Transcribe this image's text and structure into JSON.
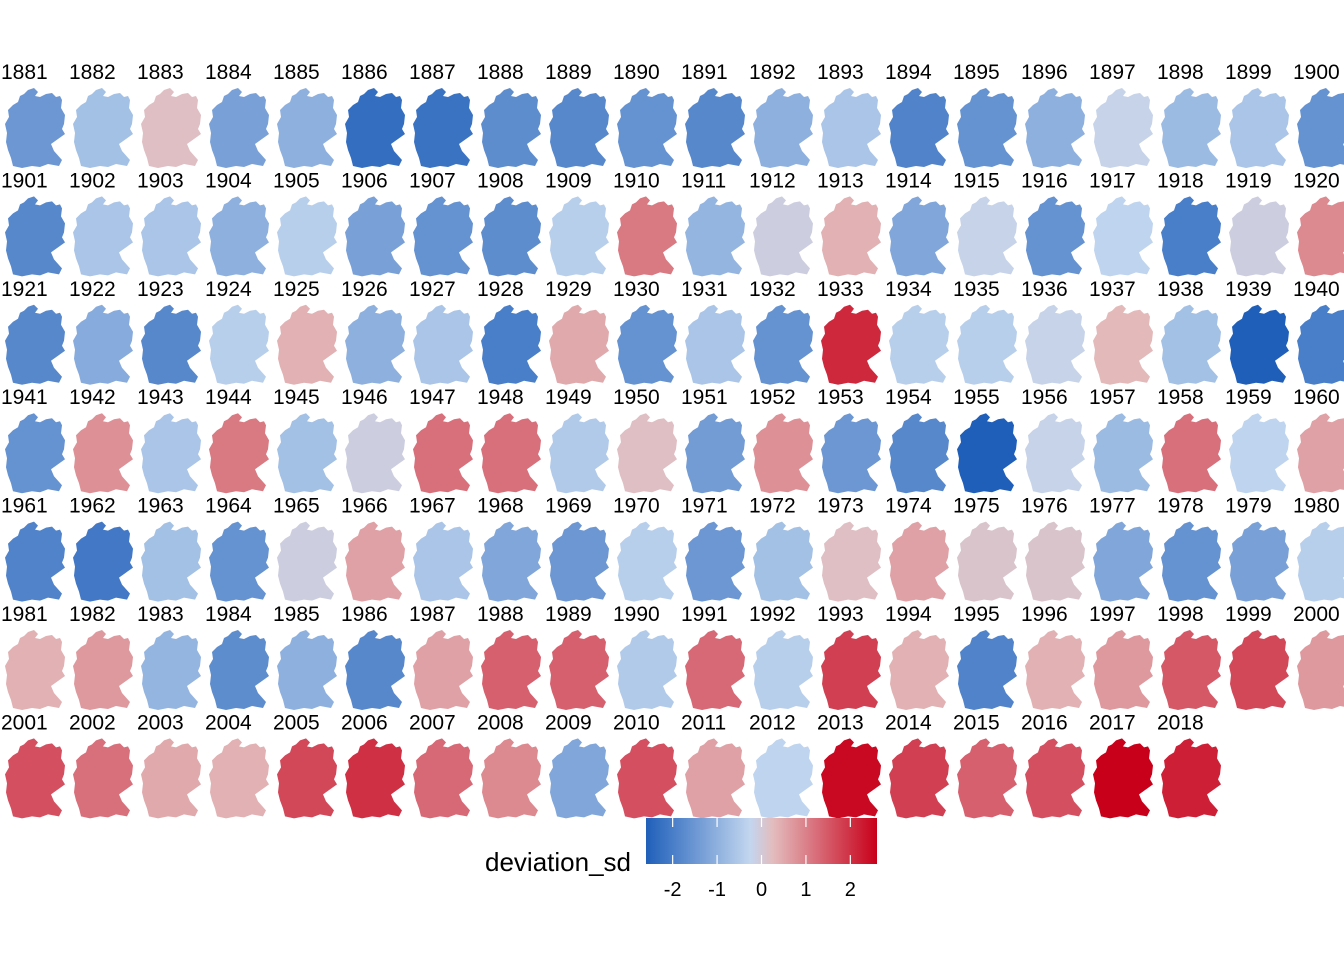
{
  "chart_data": {
    "type": "heatmap",
    "title": "",
    "layout": "small multiples of Germany maps, 20 per row",
    "facets": [
      {
        "year": "1881",
        "value": -1.5
      },
      {
        "year": "1882",
        "value": -0.7
      },
      {
        "year": "1883",
        "value": 0.2
      },
      {
        "year": "1884",
        "value": -1.3
      },
      {
        "year": "1885",
        "value": -1.0
      },
      {
        "year": "1886",
        "value": -2.3
      },
      {
        "year": "1887",
        "value": -2.2
      },
      {
        "year": "1888",
        "value": -1.7
      },
      {
        "year": "1889",
        "value": -1.8
      },
      {
        "year": "1890",
        "value": -1.6
      },
      {
        "year": "1891",
        "value": -1.8
      },
      {
        "year": "1892",
        "value": -1.0
      },
      {
        "year": "1893",
        "value": -0.6
      },
      {
        "year": "1894",
        "value": -1.9
      },
      {
        "year": "1895",
        "value": -1.6
      },
      {
        "year": "1896",
        "value": -1.0
      },
      {
        "year": "1897",
        "value": -0.2
      },
      {
        "year": "1898",
        "value": -0.8
      },
      {
        "year": "1899",
        "value": -0.6
      },
      {
        "year": "1900",
        "value": -1.6
      },
      {
        "year": "1901",
        "value": -1.8
      },
      {
        "year": "1902",
        "value": -0.6
      },
      {
        "year": "1903",
        "value": -0.6
      },
      {
        "year": "1904",
        "value": -1.0
      },
      {
        "year": "1905",
        "value": -0.4
      },
      {
        "year": "1906",
        "value": -1.3
      },
      {
        "year": "1907",
        "value": -1.6
      },
      {
        "year": "1908",
        "value": -1.7
      },
      {
        "year": "1909",
        "value": -0.4
      },
      {
        "year": "1910",
        "value": 1.1
      },
      {
        "year": "1911",
        "value": -0.9
      },
      {
        "year": "1912",
        "value": -0.1
      },
      {
        "year": "1913",
        "value": 0.4
      },
      {
        "year": "1914",
        "value": -1.2
      },
      {
        "year": "1915",
        "value": -0.2
      },
      {
        "year": "1916",
        "value": -1.6
      },
      {
        "year": "1917",
        "value": -0.3
      },
      {
        "year": "1918",
        "value": -2.0
      },
      {
        "year": "1919",
        "value": -0.1
      },
      {
        "year": "1920",
        "value": 0.9
      },
      {
        "year": "1921",
        "value": -1.8
      },
      {
        "year": "1922",
        "value": -1.1
      },
      {
        "year": "1923",
        "value": -1.8
      },
      {
        "year": "1924",
        "value": -0.4
      },
      {
        "year": "1925",
        "value": 0.4
      },
      {
        "year": "1926",
        "value": -1.0
      },
      {
        "year": "1927",
        "value": -0.6
      },
      {
        "year": "1928",
        "value": -2.0
      },
      {
        "year": "1929",
        "value": 0.5
      },
      {
        "year": "1930",
        "value": -1.6
      },
      {
        "year": "1931",
        "value": -0.6
      },
      {
        "year": "1932",
        "value": -1.6
      },
      {
        "year": "1933",
        "value": 2.1
      },
      {
        "year": "1934",
        "value": -0.4
      },
      {
        "year": "1935",
        "value": -0.4
      },
      {
        "year": "1936",
        "value": -0.2
      },
      {
        "year": "1937",
        "value": 0.3
      },
      {
        "year": "1938",
        "value": -0.7
      },
      {
        "year": "1939",
        "value": -2.6
      },
      {
        "year": "1940",
        "value": -2.0
      },
      {
        "year": "1941",
        "value": -1.6
      },
      {
        "year": "1942",
        "value": 0.8
      },
      {
        "year": "1943",
        "value": -0.6
      },
      {
        "year": "1944",
        "value": 1.1
      },
      {
        "year": "1945",
        "value": -0.7
      },
      {
        "year": "1946",
        "value": -0.1
      },
      {
        "year": "1947",
        "value": 1.2
      },
      {
        "year": "1948",
        "value": 1.2
      },
      {
        "year": "1949",
        "value": -0.5
      },
      {
        "year": "1950",
        "value": 0.2
      },
      {
        "year": "1951",
        "value": -1.4
      },
      {
        "year": "1952",
        "value": 0.8
      },
      {
        "year": "1953",
        "value": -1.5
      },
      {
        "year": "1954",
        "value": -1.8
      },
      {
        "year": "1955",
        "value": -2.6
      },
      {
        "year": "1956",
        "value": -0.2
      },
      {
        "year": "1957",
        "value": -0.8
      },
      {
        "year": "1958",
        "value": 1.2
      },
      {
        "year": "1959",
        "value": -0.3
      },
      {
        "year": "1960",
        "value": 0.6
      },
      {
        "year": "1961",
        "value": -1.9
      },
      {
        "year": "1962",
        "value": -2.1
      },
      {
        "year": "1963",
        "value": -0.7
      },
      {
        "year": "1964",
        "value": -1.6
      },
      {
        "year": "1965",
        "value": -0.1
      },
      {
        "year": "1966",
        "value": 0.6
      },
      {
        "year": "1967",
        "value": -0.6
      },
      {
        "year": "1968",
        "value": -1.2
      },
      {
        "year": "1969",
        "value": -1.5
      },
      {
        "year": "1970",
        "value": -0.4
      },
      {
        "year": "1971",
        "value": -1.5
      },
      {
        "year": "1972",
        "value": -0.7
      },
      {
        "year": "1973",
        "value": 0.2
      },
      {
        "year": "1974",
        "value": 0.6
      },
      {
        "year": "1975",
        "value": 0.1
      },
      {
        "year": "1976",
        "value": 0.1
      },
      {
        "year": "1977",
        "value": -1.2
      },
      {
        "year": "1978",
        "value": -1.6
      },
      {
        "year": "1979",
        "value": -1.3
      },
      {
        "year": "1980",
        "value": -0.4
      },
      {
        "year": "1981",
        "value": 0.4
      },
      {
        "year": "1982",
        "value": 0.7
      },
      {
        "year": "1983",
        "value": -0.9
      },
      {
        "year": "1984",
        "value": -1.7
      },
      {
        "year": "1985",
        "value": -1.0
      },
      {
        "year": "1986",
        "value": -1.8
      },
      {
        "year": "1987",
        "value": 0.6
      },
      {
        "year": "1988",
        "value": 1.4
      },
      {
        "year": "1989",
        "value": 1.4
      },
      {
        "year": "1990",
        "value": -0.5
      },
      {
        "year": "1991",
        "value": 1.3
      },
      {
        "year": "1992",
        "value": -0.4
      },
      {
        "year": "1993",
        "value": 1.8
      },
      {
        "year": "1994",
        "value": 0.4
      },
      {
        "year": "1995",
        "value": -1.9
      },
      {
        "year": "1996",
        "value": 0.4
      },
      {
        "year": "1997",
        "value": 0.7
      },
      {
        "year": "1998",
        "value": 1.5
      },
      {
        "year": "1999",
        "value": 1.7
      },
      {
        "year": "2000",
        "value": 0.7
      },
      {
        "year": "2001",
        "value": 1.6
      },
      {
        "year": "2002",
        "value": 1.2
      },
      {
        "year": "2003",
        "value": 0.5
      },
      {
        "year": "2004",
        "value": 0.4
      },
      {
        "year": "2005",
        "value": 1.7
      },
      {
        "year": "2006",
        "value": 2.0
      },
      {
        "year": "2007",
        "value": 1.3
      },
      {
        "year": "2008",
        "value": 0.9
      },
      {
        "year": "2009",
        "value": -1.2
      },
      {
        "year": "2010",
        "value": 1.6
      },
      {
        "year": "2011",
        "value": 0.6
      },
      {
        "year": "2012",
        "value": -0.3
      },
      {
        "year": "2013",
        "value": 2.5
      },
      {
        "year": "2014",
        "value": 1.8
      },
      {
        "year": "2015",
        "value": 1.4
      },
      {
        "year": "2016",
        "value": 1.6
      },
      {
        "year": "2017",
        "value": 2.6
      },
      {
        "year": "2018",
        "value": 2.2
      }
    ],
    "legend": {
      "title": "deviation_sd",
      "ticks": [
        -2,
        -1,
        0,
        1,
        2
      ],
      "range": [
        -2.6,
        2.6
      ],
      "placement": "bottom-center",
      "colors": [
        "#1f5fba",
        "#c2d6ef",
        "#e3bcbd",
        "#c8001a"
      ]
    },
    "grid": false
  }
}
